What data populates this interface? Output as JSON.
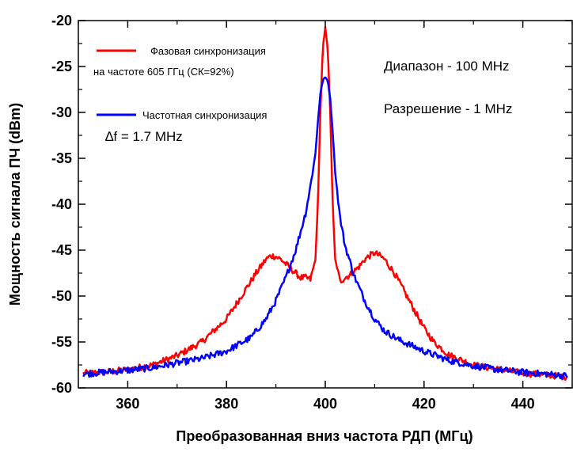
{
  "chart_data": {
    "type": "line",
    "xlabel": "Преобразованная вниз частота РДП (МГц)",
    "ylabel": "Мощность сигнала ПЧ (dBm)",
    "xlim": [
      350,
      450
    ],
    "ylim": [
      -60,
      -20
    ],
    "x_ticks": [
      360,
      380,
      400,
      420,
      440
    ],
    "y_ticks": [
      -20,
      -25,
      -30,
      -35,
      -40,
      -45,
      -50,
      -55,
      -60
    ],
    "x_tick_labels": [
      "360",
      "380",
      "400",
      "420",
      "440"
    ],
    "y_tick_labels": [
      "-20",
      "-25",
      "-30",
      "-35",
      "-40",
      "-45",
      "-50",
      "-55",
      "-60"
    ],
    "grid": false,
    "legend_position": "top-left",
    "legend": {
      "red_line1": "Фазовая синхронизация",
      "red_line2": "на частоте 605 ГГц (СК=92%)",
      "blue_line1": "Частотная синхронизация",
      "blue_line2": "∆f = 1.7 MHz"
    },
    "annotations": {
      "span": "Диапазон - 100 MHz",
      "resolution": "Разрешение - 1 MHz"
    },
    "series": [
      {
        "name": "Фазовая синхронизация",
        "color": "#ff0000",
        "x": [
          351,
          355,
          360,
          365,
          370,
          375,
          380,
          383,
          386,
          388,
          389,
          390,
          391,
          392,
          393,
          394,
          395,
          396,
          397,
          398,
          398.5,
          399,
          399.5,
          400,
          400.5,
          401,
          401.5,
          402,
          403,
          404,
          405,
          406,
          407,
          408,
          409,
          410,
          411,
          412,
          414,
          416,
          418,
          420,
          422,
          425,
          430,
          435,
          440,
          445,
          449
        ],
        "y": [
          -58.4,
          -58.3,
          -58.0,
          -57.5,
          -56.5,
          -55.0,
          -52.5,
          -50.0,
          -47.5,
          -46.0,
          -45.6,
          -45.7,
          -46.0,
          -46.5,
          -47.0,
          -47.5,
          -48.0,
          -48.0,
          -48.2,
          -46.0,
          -40.0,
          -30.0,
          -23.0,
          -20.8,
          -23.0,
          -30.0,
          -40.0,
          -46.0,
          -48.4,
          -48.0,
          -47.7,
          -47.2,
          -46.7,
          -46.0,
          -45.6,
          -45.3,
          -45.6,
          -46.0,
          -47.5,
          -49.5,
          -51.5,
          -53.5,
          -55.0,
          -56.4,
          -57.5,
          -58.0,
          -58.4,
          -58.6,
          -58.8
        ]
      },
      {
        "name": "Частотная синхронизация",
        "color": "#0000ff",
        "x": [
          351,
          355,
          360,
          365,
          370,
          375,
          380,
          385,
          388,
          390,
          392,
          394,
          396,
          397,
          398,
          398.5,
          399,
          399.5,
          400,
          400.5,
          401,
          401.5,
          402,
          403,
          404,
          406,
          408,
          410,
          412,
          415,
          420,
          425,
          430,
          435,
          440,
          445,
          449
        ],
        "y": [
          -58.5,
          -58.3,
          -58.1,
          -57.8,
          -57.3,
          -56.8,
          -56.0,
          -54.5,
          -52.5,
          -50.5,
          -48.0,
          -45.0,
          -41.0,
          -38.0,
          -34.5,
          -31.0,
          -28.0,
          -26.5,
          -26.2,
          -26.5,
          -28.5,
          -32.0,
          -36.5,
          -41.5,
          -44.5,
          -48.0,
          -50.5,
          -52.5,
          -53.8,
          -54.8,
          -56.0,
          -57.0,
          -57.6,
          -58.0,
          -58.3,
          -58.5,
          -58.7
        ]
      }
    ]
  }
}
